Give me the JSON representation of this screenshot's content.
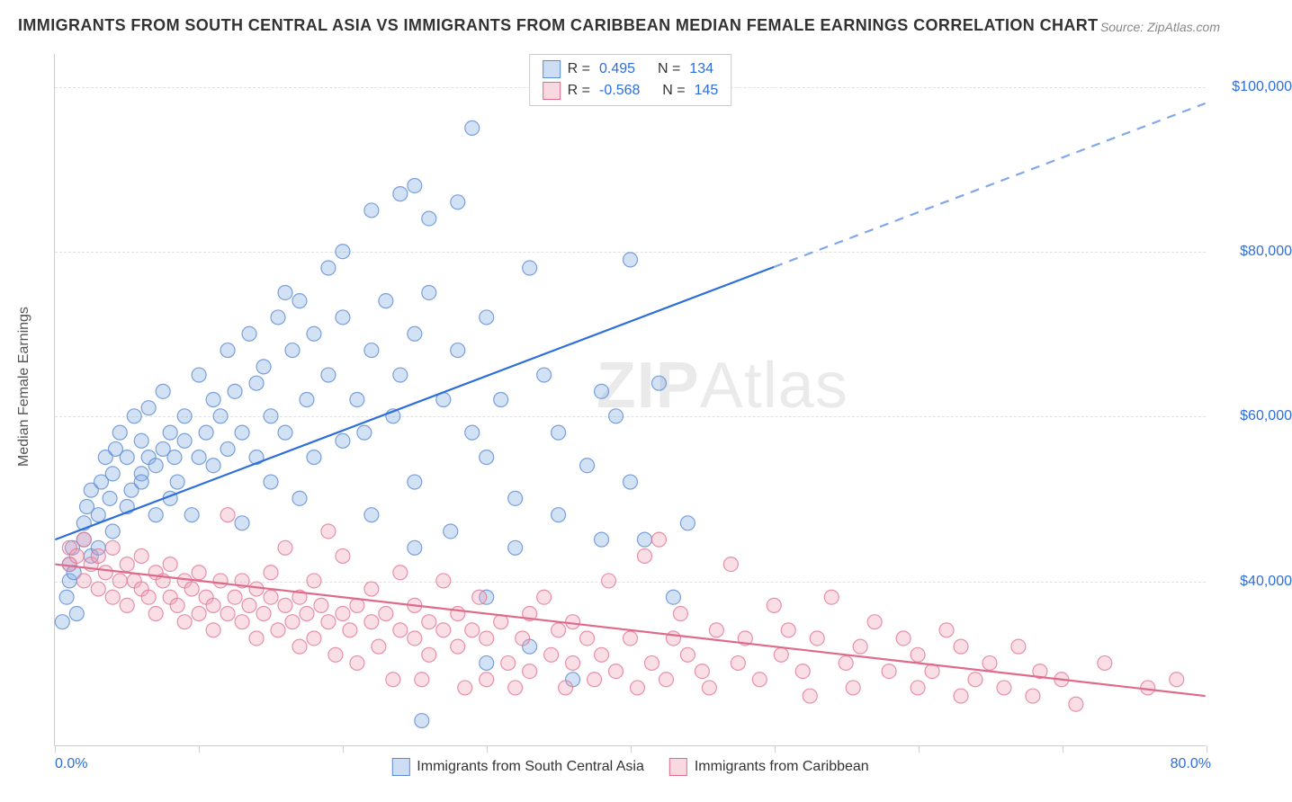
{
  "title": "IMMIGRANTS FROM SOUTH CENTRAL ASIA VS IMMIGRANTS FROM CARIBBEAN MEDIAN FEMALE EARNINGS CORRELATION CHART",
  "source": "Source: ZipAtlas.com",
  "watermark_a": "ZIP",
  "watermark_b": "Atlas",
  "y_axis_label": "Median Female Earnings",
  "axes": {
    "x_min": 0,
    "x_max": 80,
    "x_min_label": "0.0%",
    "x_max_label": "80.0%",
    "y_min": 20000,
    "y_max": 104000,
    "y_ticks": [
      40000,
      60000,
      80000,
      100000
    ],
    "y_tick_labels": [
      "$40,000",
      "$60,000",
      "$80,000",
      "$100,000"
    ],
    "x_tick_positions": [
      0,
      10,
      20,
      30,
      40,
      50,
      60,
      70,
      80
    ]
  },
  "series": [
    {
      "name": "Immigrants from South Central Asia",
      "key": "blue",
      "marker_radius": 8,
      "stats": {
        "R": "0.495",
        "N": "134"
      },
      "trend": {
        "y_at_x0": 45000,
        "y_at_x80": 98000,
        "solid_until_x": 50
      },
      "points": [
        [
          0.5,
          35000
        ],
        [
          0.8,
          38000
        ],
        [
          1,
          40000
        ],
        [
          1,
          42000
        ],
        [
          1.2,
          44000
        ],
        [
          1.5,
          36000
        ],
        [
          1.3,
          41000
        ],
        [
          2,
          45000
        ],
        [
          2,
          47000
        ],
        [
          2.2,
          49000
        ],
        [
          2.5,
          43000
        ],
        [
          2.5,
          51000
        ],
        [
          3,
          44000
        ],
        [
          3,
          48000
        ],
        [
          3.2,
          52000
        ],
        [
          3.5,
          55000
        ],
        [
          3.8,
          50000
        ],
        [
          4,
          46000
        ],
        [
          4,
          53000
        ],
        [
          4.2,
          56000
        ],
        [
          4.5,
          58000
        ],
        [
          5,
          49000
        ],
        [
          5,
          55000
        ],
        [
          5.3,
          51000
        ],
        [
          5.5,
          60000
        ],
        [
          6,
          53000
        ],
        [
          6,
          57000
        ],
        [
          6,
          52000
        ],
        [
          6.5,
          55000
        ],
        [
          6.5,
          61000
        ],
        [
          7,
          48000
        ],
        [
          7,
          54000
        ],
        [
          7.5,
          56000
        ],
        [
          7.5,
          63000
        ],
        [
          8,
          50000
        ],
        [
          8,
          58000
        ],
        [
          8.3,
          55000
        ],
        [
          8.5,
          52000
        ],
        [
          9,
          57000
        ],
        [
          9,
          60000
        ],
        [
          9.5,
          48000
        ],
        [
          10,
          55000
        ],
        [
          10,
          65000
        ],
        [
          10.5,
          58000
        ],
        [
          11,
          54000
        ],
        [
          11,
          62000
        ],
        [
          11.5,
          60000
        ],
        [
          12,
          56000
        ],
        [
          12,
          68000
        ],
        [
          12.5,
          63000
        ],
        [
          13,
          58000
        ],
        [
          13,
          47000
        ],
        [
          13.5,
          70000
        ],
        [
          14,
          55000
        ],
        [
          14,
          64000
        ],
        [
          14.5,
          66000
        ],
        [
          15,
          60000
        ],
        [
          15,
          52000
        ],
        [
          15.5,
          72000
        ],
        [
          16,
          58000
        ],
        [
          16,
          75000
        ],
        [
          16.5,
          68000
        ],
        [
          17,
          50000
        ],
        [
          17,
          74000
        ],
        [
          17.5,
          62000
        ],
        [
          18,
          55000
        ],
        [
          18,
          70000
        ],
        [
          19,
          78000
        ],
        [
          19,
          65000
        ],
        [
          20,
          57000
        ],
        [
          20,
          80000
        ],
        [
          20,
          72000
        ],
        [
          21,
          62000
        ],
        [
          21.5,
          58000
        ],
        [
          22,
          85000
        ],
        [
          22,
          68000
        ],
        [
          22,
          48000
        ],
        [
          23,
          74000
        ],
        [
          23.5,
          60000
        ],
        [
          24,
          87000
        ],
        [
          24,
          65000
        ],
        [
          25,
          88000
        ],
        [
          25,
          70000
        ],
        [
          25,
          52000
        ],
        [
          25,
          44000
        ],
        [
          25.5,
          23000
        ],
        [
          26,
          84000
        ],
        [
          26,
          75000
        ],
        [
          27,
          62000
        ],
        [
          27.5,
          46000
        ],
        [
          28,
          86000
        ],
        [
          28,
          68000
        ],
        [
          29,
          95000
        ],
        [
          29,
          58000
        ],
        [
          30,
          55000
        ],
        [
          30,
          72000
        ],
        [
          30,
          38000
        ],
        [
          30,
          30000
        ],
        [
          31,
          62000
        ],
        [
          32,
          50000
        ],
        [
          32,
          44000
        ],
        [
          33,
          78000
        ],
        [
          33,
          32000
        ],
        [
          34,
          65000
        ],
        [
          35,
          58000
        ],
        [
          35,
          48000
        ],
        [
          36,
          28000
        ],
        [
          37,
          54000
        ],
        [
          38,
          45000
        ],
        [
          38,
          63000
        ],
        [
          39,
          60000
        ],
        [
          40,
          79000
        ],
        [
          40,
          52000
        ],
        [
          41,
          45000
        ],
        [
          42,
          64000
        ],
        [
          43,
          38000
        ],
        [
          44,
          47000
        ]
      ]
    },
    {
      "name": "Immigrants from Caribbean",
      "key": "pink",
      "marker_radius": 8,
      "stats": {
        "R": "-0.568",
        "N": "145"
      },
      "trend": {
        "y_at_x0": 42000,
        "y_at_x80": 26000
      },
      "points": [
        [
          1,
          42000
        ],
        [
          1,
          44000
        ],
        [
          1.5,
          43000
        ],
        [
          2,
          40000
        ],
        [
          2,
          45000
        ],
        [
          2.5,
          42000
        ],
        [
          3,
          39000
        ],
        [
          3,
          43000
        ],
        [
          3.5,
          41000
        ],
        [
          4,
          38000
        ],
        [
          4,
          44000
        ],
        [
          4.5,
          40000
        ],
        [
          5,
          42000
        ],
        [
          5,
          37000
        ],
        [
          5.5,
          40000
        ],
        [
          6,
          39000
        ],
        [
          6,
          43000
        ],
        [
          6.5,
          38000
        ],
        [
          7,
          41000
        ],
        [
          7,
          36000
        ],
        [
          7.5,
          40000
        ],
        [
          8,
          38000
        ],
        [
          8,
          42000
        ],
        [
          8.5,
          37000
        ],
        [
          9,
          40000
        ],
        [
          9,
          35000
        ],
        [
          9.5,
          39000
        ],
        [
          10,
          41000
        ],
        [
          10,
          36000
        ],
        [
          10.5,
          38000
        ],
        [
          11,
          37000
        ],
        [
          11,
          34000
        ],
        [
          11.5,
          40000
        ],
        [
          12,
          36000
        ],
        [
          12,
          48000
        ],
        [
          12.5,
          38000
        ],
        [
          13,
          35000
        ],
        [
          13,
          40000
        ],
        [
          13.5,
          37000
        ],
        [
          14,
          39000
        ],
        [
          14,
          33000
        ],
        [
          14.5,
          36000
        ],
        [
          15,
          38000
        ],
        [
          15,
          41000
        ],
        [
          15.5,
          34000
        ],
        [
          16,
          37000
        ],
        [
          16,
          44000
        ],
        [
          16.5,
          35000
        ],
        [
          17,
          38000
        ],
        [
          17,
          32000
        ],
        [
          17.5,
          36000
        ],
        [
          18,
          40000
        ],
        [
          18,
          33000
        ],
        [
          18.5,
          37000
        ],
        [
          19,
          35000
        ],
        [
          19,
          46000
        ],
        [
          19.5,
          31000
        ],
        [
          20,
          36000
        ],
        [
          20,
          43000
        ],
        [
          20.5,
          34000
        ],
        [
          21,
          37000
        ],
        [
          21,
          30000
        ],
        [
          22,
          35000
        ],
        [
          22,
          39000
        ],
        [
          22.5,
          32000
        ],
        [
          23,
          36000
        ],
        [
          23.5,
          28000
        ],
        [
          24,
          34000
        ],
        [
          24,
          41000
        ],
        [
          25,
          33000
        ],
        [
          25,
          37000
        ],
        [
          25.5,
          28000
        ],
        [
          26,
          35000
        ],
        [
          26,
          31000
        ],
        [
          27,
          34000
        ],
        [
          27,
          40000
        ],
        [
          28,
          32000
        ],
        [
          28,
          36000
        ],
        [
          28.5,
          27000
        ],
        [
          29,
          34000
        ],
        [
          29.5,
          38000
        ],
        [
          30,
          28000
        ],
        [
          30,
          33000
        ],
        [
          31,
          35000
        ],
        [
          31.5,
          30000
        ],
        [
          32,
          27000
        ],
        [
          32.5,
          33000
        ],
        [
          33,
          36000
        ],
        [
          33,
          29000
        ],
        [
          34,
          38000
        ],
        [
          34.5,
          31000
        ],
        [
          35,
          34000
        ],
        [
          35.5,
          27000
        ],
        [
          36,
          30000
        ],
        [
          36,
          35000
        ],
        [
          37,
          33000
        ],
        [
          37.5,
          28000
        ],
        [
          38,
          31000
        ],
        [
          38.5,
          40000
        ],
        [
          39,
          29000
        ],
        [
          40,
          33000
        ],
        [
          40.5,
          27000
        ],
        [
          41,
          43000
        ],
        [
          41.5,
          30000
        ],
        [
          42,
          45000
        ],
        [
          42.5,
          28000
        ],
        [
          43,
          33000
        ],
        [
          43.5,
          36000
        ],
        [
          44,
          31000
        ],
        [
          45,
          29000
        ],
        [
          45.5,
          27000
        ],
        [
          46,
          34000
        ],
        [
          47,
          42000
        ],
        [
          47.5,
          30000
        ],
        [
          48,
          33000
        ],
        [
          49,
          28000
        ],
        [
          50,
          37000
        ],
        [
          50.5,
          31000
        ],
        [
          51,
          34000
        ],
        [
          52,
          29000
        ],
        [
          52.5,
          26000
        ],
        [
          53,
          33000
        ],
        [
          54,
          38000
        ],
        [
          55,
          30000
        ],
        [
          55.5,
          27000
        ],
        [
          56,
          32000
        ],
        [
          57,
          35000
        ],
        [
          58,
          29000
        ],
        [
          59,
          33000
        ],
        [
          60,
          31000
        ],
        [
          60,
          27000
        ],
        [
          61,
          29000
        ],
        [
          62,
          34000
        ],
        [
          63,
          26000
        ],
        [
          63,
          32000
        ],
        [
          64,
          28000
        ],
        [
          65,
          30000
        ],
        [
          66,
          27000
        ],
        [
          67,
          32000
        ],
        [
          68,
          26000
        ],
        [
          68.5,
          29000
        ],
        [
          70,
          28000
        ],
        [
          71,
          25000
        ],
        [
          73,
          30000
        ],
        [
          76,
          27000
        ],
        [
          78,
          28000
        ]
      ]
    }
  ],
  "legend_top": {
    "R_label": "R =",
    "N_label": "N ="
  }
}
